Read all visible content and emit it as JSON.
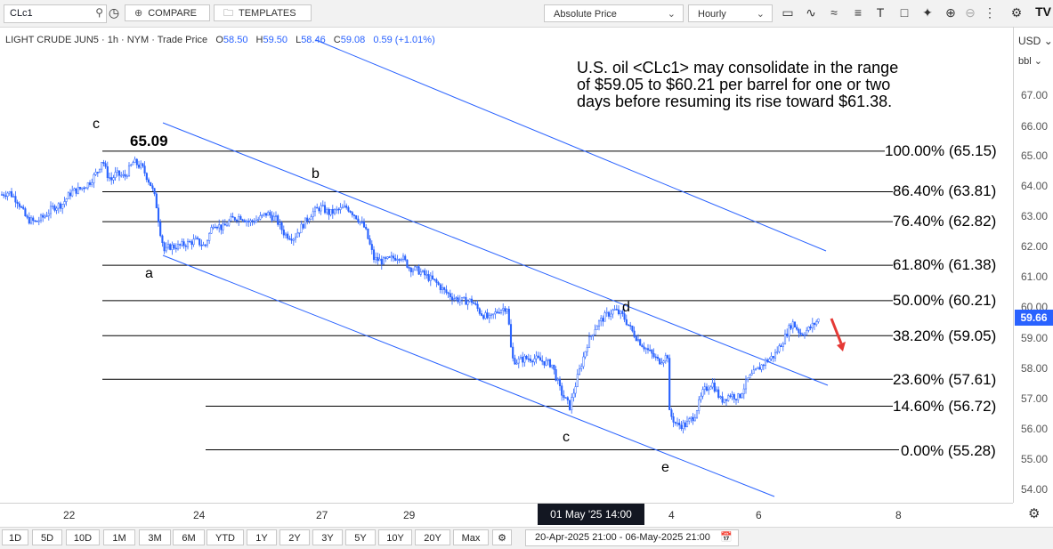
{
  "toolbar": {
    "symbol": "CLc1",
    "compare_label": "COMPARE",
    "templates_label": "TEMPLATES",
    "price_mode": "Absolute Price",
    "interval": "Hourly",
    "logo": "TV"
  },
  "legend": {
    "name": "LIGHT CRUDE JUN5 · 1h · NYM · Trade Price",
    "o_label": "O",
    "o_value": "58.50",
    "h_label": "H",
    "h_value": "59.50",
    "l_label": "L",
    "l_value": "58.46",
    "c_label": "C",
    "c_value": "59.08",
    "change": "0.59 (+1.01%)"
  },
  "commentary": [
    "U.S. oil <CLc1> may consolidate in the range",
    "of $59.05 to $60.21 per barrel for one or two",
    "days before resuming its rise toward $61.38."
  ],
  "price_axis": {
    "currency": "USD",
    "unit": "bbl",
    "labels": [
      "67.00",
      "66.00",
      "65.00",
      "64.00",
      "63.00",
      "62.00",
      "61.00",
      "60.00",
      "59.00",
      "58.00",
      "57.00",
      "56.00",
      "55.00",
      "54.00"
    ],
    "current_price": "59.66"
  },
  "fib_levels": [
    {
      "label": "100.00% (65.15)",
      "price": 65.15
    },
    {
      "label": "86.40% (63.81)",
      "price": 63.81
    },
    {
      "label": "76.40% (62.82)",
      "price": 62.82
    },
    {
      "label": "61.80% (61.38)",
      "price": 61.38
    },
    {
      "label": "50.00% (60.21)",
      "price": 60.21
    },
    {
      "label": "38.20% (59.05)",
      "price": 59.05
    },
    {
      "label": "23.60% (57.61)",
      "price": 57.61
    },
    {
      "label": "14.60% (56.72)",
      "price": 56.72
    },
    {
      "label": "0.00% (55.28)",
      "price": 55.28
    }
  ],
  "annotations": {
    "price_note": "65.09",
    "wave_c1": "c",
    "wave_a": "a",
    "wave_b": "b",
    "wave_c2": "c",
    "wave_d": "d",
    "wave_e": "e"
  },
  "time_axis": {
    "labels": [
      "22",
      "24",
      "27",
      "29",
      "4",
      "6",
      "8"
    ],
    "crosshair": "01 May '25  14:00"
  },
  "ranges": [
    "1D",
    "5D",
    "10D",
    "1M",
    "3M",
    "6M",
    "YTD",
    "1Y",
    "2Y",
    "3Y",
    "5Y",
    "10Y",
    "20Y",
    "Max"
  ],
  "date_range": "20-Apr-2025 21:00 - 06-May-2025 21:00",
  "colors": {
    "candle": "#2962ff",
    "channel": "#2962ff",
    "arrow": "#e53935",
    "fib": "#000000"
  },
  "chart_data": {
    "type": "candlestick",
    "ylim": [
      53.6,
      67.6
    ],
    "close_path": [
      [
        0,
        63.7
      ],
      [
        10,
        63.8
      ],
      [
        20,
        63.5
      ],
      [
        30,
        62.9
      ],
      [
        40,
        62.8
      ],
      [
        50,
        63.0
      ],
      [
        60,
        63.3
      ],
      [
        70,
        63.4
      ],
      [
        80,
        63.8
      ],
      [
        90,
        63.9
      ],
      [
        100,
        64.1
      ],
      [
        110,
        64.5
      ],
      [
        115,
        64.9
      ],
      [
        120,
        64.4
      ],
      [
        125,
        64.2
      ],
      [
        130,
        64.4
      ],
      [
        140,
        64.3
      ],
      [
        150,
        64.8
      ],
      [
        160,
        64.6
      ],
      [
        165,
        64.3
      ],
      [
        170,
        64.0
      ],
      [
        175,
        63.5
      ],
      [
        180,
        62.5
      ],
      [
        185,
        61.8
      ],
      [
        190,
        62.0
      ],
      [
        200,
        62.0
      ],
      [
        210,
        62.1
      ],
      [
        220,
        62.2
      ],
      [
        230,
        62.0
      ],
      [
        240,
        62.8
      ],
      [
        250,
        62.6
      ],
      [
        260,
        62.9
      ],
      [
        270,
        63.0
      ],
      [
        280,
        62.8
      ],
      [
        290,
        62.9
      ],
      [
        300,
        63.1
      ],
      [
        310,
        62.9
      ],
      [
        320,
        62.4
      ],
      [
        330,
        62.3
      ],
      [
        340,
        62.7
      ],
      [
        350,
        63.1
      ],
      [
        360,
        63.3
      ],
      [
        370,
        63.1
      ],
      [
        380,
        63.2
      ],
      [
        390,
        63.3
      ],
      [
        400,
        63.0
      ],
      [
        410,
        62.6
      ],
      [
        420,
        61.6
      ],
      [
        430,
        61.5
      ],
      [
        440,
        61.6
      ],
      [
        450,
        61.7
      ],
      [
        460,
        61.3
      ],
      [
        470,
        61.2
      ],
      [
        480,
        61.0
      ],
      [
        490,
        60.8
      ],
      [
        500,
        60.5
      ],
      [
        510,
        60.3
      ],
      [
        520,
        60.2
      ],
      [
        530,
        60.2
      ],
      [
        540,
        59.8
      ],
      [
        550,
        59.6
      ],
      [
        560,
        59.9
      ],
      [
        570,
        60.0
      ],
      [
        575,
        58.3
      ],
      [
        580,
        58.2
      ],
      [
        590,
        58.3
      ],
      [
        600,
        58.3
      ],
      [
        610,
        58.2
      ],
      [
        620,
        58.1
      ],
      [
        630,
        57.2
      ],
      [
        640,
        56.7
      ],
      [
        650,
        57.8
      ],
      [
        660,
        58.8
      ],
      [
        670,
        59.4
      ],
      [
        680,
        59.7
      ],
      [
        690,
        59.9
      ],
      [
        700,
        59.7
      ],
      [
        710,
        59.2
      ],
      [
        720,
        58.8
      ],
      [
        730,
        58.5
      ],
      [
        740,
        58.2
      ],
      [
        750,
        58.4
      ],
      [
        752,
        56.5
      ],
      [
        760,
        56.1
      ],
      [
        770,
        56.1
      ],
      [
        780,
        56.4
      ],
      [
        790,
        57.2
      ],
      [
        800,
        57.5
      ],
      [
        810,
        56.9
      ],
      [
        820,
        57.1
      ],
      [
        830,
        57.0
      ],
      [
        840,
        57.6
      ],
      [
        850,
        57.9
      ],
      [
        860,
        58.2
      ],
      [
        870,
        58.4
      ],
      [
        880,
        58.9
      ],
      [
        890,
        59.5
      ],
      [
        900,
        59.1
      ],
      [
        910,
        59.3
      ],
      [
        920,
        59.6
      ]
    ]
  }
}
